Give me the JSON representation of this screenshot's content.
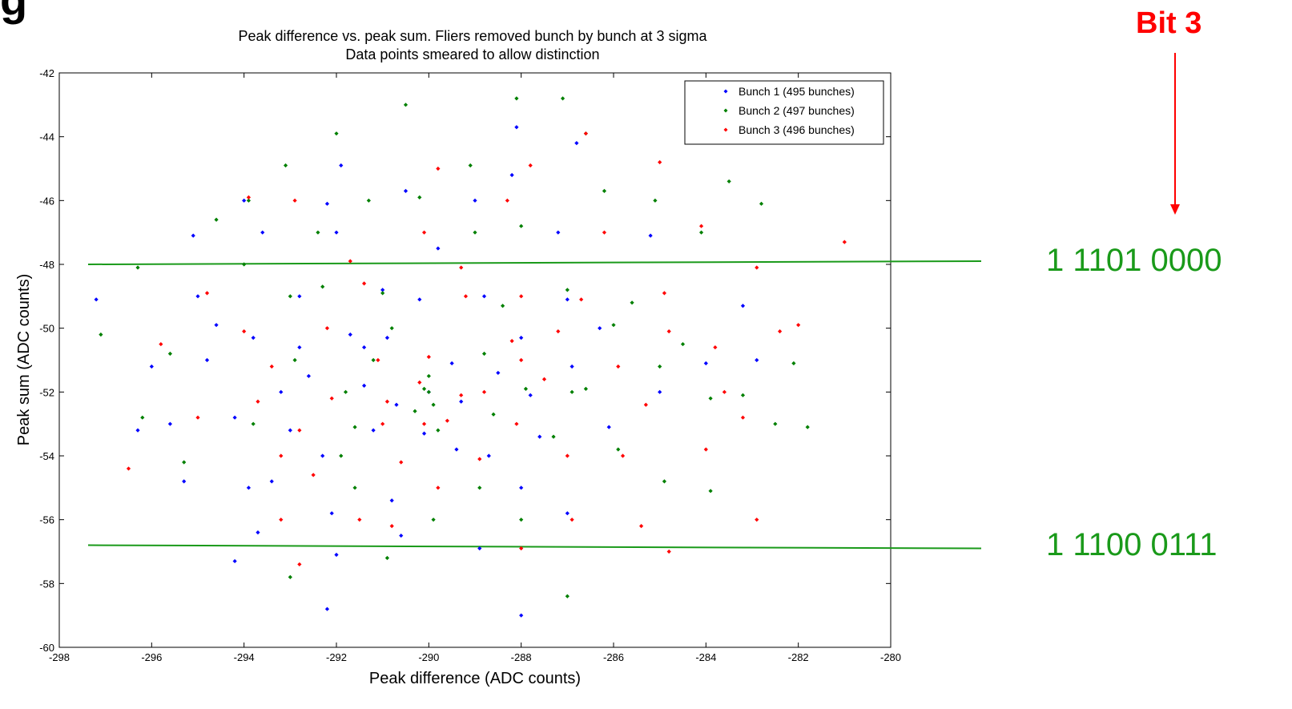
{
  "slide": {
    "heading_fragment": "g",
    "bit_label": "Bit 3",
    "upper_code": "1 1101 0000",
    "lower_code": "1 1100 0111",
    "annotation_color": "#ff0000",
    "code_color": "#1a9a1a"
  },
  "chart_data": {
    "type": "scatter",
    "title": "Peak difference vs. peak sum.  Fliers removed bunch by bunch at 3 sigma",
    "subtitle": "Data points smeared to allow distinction",
    "xlabel": "Peak difference (ADC counts)",
    "ylabel": "Peak sum (ADC counts)",
    "xlim": [
      -298,
      -280
    ],
    "ylim": [
      -60,
      -42
    ],
    "xticks": [
      -298,
      -296,
      -294,
      -292,
      -290,
      -288,
      -286,
      -284,
      -282,
      -280
    ],
    "yticks": [
      -42,
      -44,
      -46,
      -48,
      -50,
      -52,
      -54,
      -56,
      -58,
      -60
    ],
    "grid": false,
    "legend_position": "top-right",
    "series": [
      {
        "name": "Bunch 1 (495 bunches)",
        "color": "#0000ff",
        "points": [
          [
            -297.2,
            -49.1
          ],
          [
            -296.0,
            -51.2
          ],
          [
            -295.6,
            -53.0
          ],
          [
            -295.1,
            -47.1
          ],
          [
            -295.0,
            -49.0
          ],
          [
            -294.8,
            -51.0
          ],
          [
            -294.2,
            -52.8
          ],
          [
            -294.0,
            -46.0
          ],
          [
            -293.6,
            -47.0
          ],
          [
            -293.8,
            -50.3
          ],
          [
            -293.9,
            -55.0
          ],
          [
            -293.7,
            -56.4
          ],
          [
            -294.2,
            -57.3
          ],
          [
            -293.2,
            -52.0
          ],
          [
            -293.0,
            -53.2
          ],
          [
            -292.8,
            -49.0
          ],
          [
            -292.6,
            -51.5
          ],
          [
            -292.2,
            -46.1
          ],
          [
            -292.0,
            -47.0
          ],
          [
            -292.3,
            -54.0
          ],
          [
            -292.1,
            -55.8
          ],
          [
            -292.0,
            -57.1
          ],
          [
            -292.2,
            -58.8
          ],
          [
            -291.9,
            -44.9
          ],
          [
            -291.7,
            -50.2
          ],
          [
            -291.4,
            -51.8
          ],
          [
            -291.2,
            -53.2
          ],
          [
            -291.0,
            -48.8
          ],
          [
            -290.9,
            -50.3
          ],
          [
            -290.8,
            -55.4
          ],
          [
            -290.6,
            -56.5
          ],
          [
            -290.5,
            -45.7
          ],
          [
            -290.2,
            -49.1
          ],
          [
            -290.0,
            -52.0
          ],
          [
            -290.1,
            -53.3
          ],
          [
            -289.8,
            -47.5
          ],
          [
            -289.5,
            -51.1
          ],
          [
            -289.0,
            -46.0
          ],
          [
            -288.8,
            -49.0
          ],
          [
            -288.7,
            -54.0
          ],
          [
            -288.9,
            -56.9
          ],
          [
            -288.1,
            -43.7
          ],
          [
            -288.2,
            -45.2
          ],
          [
            -288.0,
            -50.3
          ],
          [
            -287.8,
            -52.1
          ],
          [
            -288.0,
            -55.0
          ],
          [
            -288.0,
            -59.0
          ],
          [
            -287.2,
            -47.0
          ],
          [
            -287.0,
            -49.1
          ],
          [
            -286.9,
            -51.2
          ],
          [
            -287.0,
            -55.8
          ],
          [
            -286.8,
            -44.2
          ],
          [
            -286.3,
            -50.0
          ],
          [
            -286.1,
            -53.1
          ],
          [
            -285.2,
            -47.1
          ],
          [
            -285.0,
            -52.0
          ],
          [
            -284.0,
            -51.1
          ],
          [
            -283.2,
            -49.3
          ],
          [
            -282.9,
            -51.0
          ],
          [
            -289.3,
            -52.3
          ],
          [
            -289.4,
            -53.8
          ],
          [
            -290.7,
            -52.4
          ],
          [
            -291.4,
            -50.6
          ],
          [
            -288.5,
            -51.4
          ],
          [
            -287.6,
            -53.4
          ],
          [
            -292.8,
            -50.6
          ],
          [
            -293.4,
            -54.8
          ],
          [
            -294.6,
            -49.9
          ],
          [
            -295.3,
            -54.8
          ],
          [
            -296.3,
            -53.2
          ]
        ]
      },
      {
        "name": "Bunch 2 (497 bunches)",
        "color": "#008000",
        "points": [
          [
            -297.1,
            -50.2
          ],
          [
            -296.3,
            -48.1
          ],
          [
            -296.2,
            -52.8
          ],
          [
            -295.6,
            -50.8
          ],
          [
            -295.3,
            -54.2
          ],
          [
            -294.6,
            -46.6
          ],
          [
            -294.0,
            -48.0
          ],
          [
            -293.8,
            -53.0
          ],
          [
            -293.9,
            -46.0
          ],
          [
            -293.1,
            -44.9
          ],
          [
            -293.0,
            -49.0
          ],
          [
            -292.9,
            -51.0
          ],
          [
            -293.0,
            -57.8
          ],
          [
            -292.4,
            -47.0
          ],
          [
            -292.0,
            -43.9
          ],
          [
            -291.8,
            -52.0
          ],
          [
            -291.9,
            -54.0
          ],
          [
            -291.6,
            -55.0
          ],
          [
            -291.3,
            -46.0
          ],
          [
            -291.0,
            -48.9
          ],
          [
            -290.8,
            -50.0
          ],
          [
            -290.9,
            -57.2
          ],
          [
            -290.5,
            -43.0
          ],
          [
            -290.2,
            -45.9
          ],
          [
            -290.0,
            -52.0
          ],
          [
            -289.8,
            -53.2
          ],
          [
            -289.9,
            -56.0
          ],
          [
            -289.1,
            -44.9
          ],
          [
            -289.0,
            -47.0
          ],
          [
            -288.8,
            -50.8
          ],
          [
            -288.9,
            -55.0
          ],
          [
            -288.1,
            -42.8
          ],
          [
            -288.0,
            -46.8
          ],
          [
            -287.9,
            -51.9
          ],
          [
            -288.0,
            -56.0
          ],
          [
            -287.1,
            -42.8
          ],
          [
            -287.0,
            -48.8
          ],
          [
            -286.9,
            -52.0
          ],
          [
            -287.0,
            -58.4
          ],
          [
            -286.6,
            -43.9
          ],
          [
            -286.2,
            -45.7
          ],
          [
            -286.0,
            -49.9
          ],
          [
            -285.9,
            -53.8
          ],
          [
            -285.1,
            -46.0
          ],
          [
            -285.0,
            -51.2
          ],
          [
            -284.9,
            -54.8
          ],
          [
            -284.1,
            -47.0
          ],
          [
            -283.9,
            -52.2
          ],
          [
            -283.9,
            -55.1
          ],
          [
            -283.5,
            -45.4
          ],
          [
            -283.2,
            -52.1
          ],
          [
            -282.8,
            -46.1
          ],
          [
            -282.5,
            -53.0
          ],
          [
            -282.1,
            -51.1
          ],
          [
            -281.8,
            -53.1
          ],
          [
            -290.1,
            -51.9
          ],
          [
            -290.0,
            -51.5
          ],
          [
            -289.9,
            -52.4
          ],
          [
            -290.3,
            -52.6
          ],
          [
            -288.6,
            -52.7
          ],
          [
            -291.2,
            -51.0
          ],
          [
            -292.3,
            -48.7
          ],
          [
            -291.6,
            -53.1
          ],
          [
            -288.4,
            -49.3
          ],
          [
            -287.3,
            -53.4
          ],
          [
            -286.6,
            -51.9
          ],
          [
            -285.6,
            -49.2
          ],
          [
            -284.5,
            -50.5
          ]
        ]
      },
      {
        "name": "Bunch 3 (496 bunches)",
        "color": "#ff0000",
        "points": [
          [
            -296.5,
            -54.4
          ],
          [
            -295.8,
            -50.5
          ],
          [
            -295.0,
            -52.8
          ],
          [
            -294.8,
            -48.9
          ],
          [
            -294.0,
            -50.1
          ],
          [
            -293.9,
            -45.9
          ],
          [
            -293.4,
            -51.2
          ],
          [
            -293.2,
            -54.0
          ],
          [
            -293.2,
            -56.0
          ],
          [
            -292.9,
            -46.0
          ],
          [
            -292.8,
            -53.2
          ],
          [
            -292.8,
            -57.4
          ],
          [
            -292.2,
            -50.0
          ],
          [
            -292.1,
            -52.2
          ],
          [
            -291.7,
            -47.9
          ],
          [
            -291.5,
            -56.0
          ],
          [
            -291.1,
            -51.0
          ],
          [
            -291.0,
            -53.0
          ],
          [
            -290.8,
            -56.2
          ],
          [
            -290.1,
            -47.0
          ],
          [
            -290.0,
            -50.9
          ],
          [
            -290.1,
            -53.0
          ],
          [
            -289.8,
            -45.0
          ],
          [
            -289.8,
            -55.0
          ],
          [
            -289.3,
            -52.1
          ],
          [
            -289.2,
            -49.0
          ],
          [
            -288.9,
            -54.1
          ],
          [
            -288.3,
            -46.0
          ],
          [
            -288.0,
            -49.0
          ],
          [
            -288.0,
            -51.0
          ],
          [
            -288.1,
            -53.0
          ],
          [
            -287.8,
            -44.9
          ],
          [
            -288.0,
            -56.9
          ],
          [
            -287.2,
            -50.1
          ],
          [
            -287.0,
            -54.0
          ],
          [
            -286.9,
            -56.0
          ],
          [
            -286.6,
            -43.9
          ],
          [
            -286.2,
            -47.0
          ],
          [
            -285.9,
            -51.2
          ],
          [
            -285.8,
            -54.0
          ],
          [
            -285.4,
            -56.2
          ],
          [
            -285.0,
            -44.8
          ],
          [
            -284.9,
            -48.9
          ],
          [
            -284.8,
            -50.1
          ],
          [
            -284.8,
            -57.0
          ],
          [
            -284.1,
            -46.8
          ],
          [
            -284.0,
            -53.8
          ],
          [
            -283.8,
            -50.6
          ],
          [
            -283.6,
            -52.0
          ],
          [
            -283.2,
            -52.8
          ],
          [
            -282.9,
            -48.1
          ],
          [
            -282.4,
            -50.1
          ],
          [
            -282.0,
            -49.9
          ],
          [
            -281.0,
            -47.3
          ],
          [
            -282.9,
            -56.0
          ],
          [
            -290.2,
            -51.7
          ],
          [
            -289.6,
            -52.9
          ],
          [
            -290.6,
            -54.2
          ],
          [
            -288.8,
            -52.0
          ],
          [
            -287.5,
            -51.6
          ],
          [
            -291.4,
            -48.6
          ],
          [
            -292.5,
            -54.6
          ],
          [
            -293.7,
            -52.3
          ],
          [
            -285.3,
            -52.4
          ],
          [
            -286.7,
            -49.1
          ],
          [
            -289.3,
            -48.1
          ],
          [
            -290.9,
            -52.3
          ],
          [
            -288.2,
            -50.4
          ]
        ]
      }
    ],
    "reference_lines": [
      {
        "y_start": -48.0,
        "y_end": -47.9,
        "color": "#1a9a1a"
      },
      {
        "y_start": -56.8,
        "y_end": -56.9,
        "color": "#1a9a1a"
      }
    ]
  }
}
